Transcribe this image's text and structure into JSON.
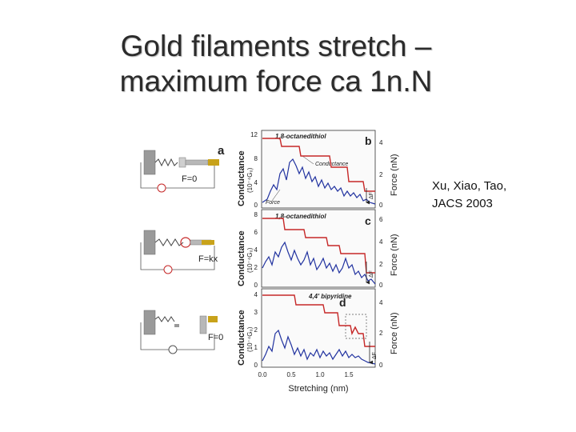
{
  "slide": {
    "title_line1": "Gold filaments stretch –",
    "title_line2": "maximum force ca 1n.N",
    "citation_line1": "Xu, Xiao, Tao,",
    "citation_line2": "JACS 2003"
  },
  "figure": {
    "panel_a": {
      "letter": "a",
      "states": [
        "F=0",
        "F=kx",
        "F=0"
      ]
    },
    "panels": [
      {
        "letter": "b",
        "molecule": "1,8-octanedithiol",
        "labels": [
          "Conductance",
          "Force"
        ],
        "left_ticks": [
          "12",
          "8",
          "4",
          "0"
        ],
        "right_ticks": [
          "4",
          "2",
          "0"
        ]
      },
      {
        "letter": "c",
        "molecule": "1,8-octanedithiol",
        "left_ticks": [
          "8",
          "6",
          "4",
          "2",
          "0"
        ],
        "right_ticks": [
          "6",
          "4",
          "2",
          "0"
        ]
      },
      {
        "letter": "d",
        "molecule": "4,4' bipyridine",
        "left_ticks": [
          "4",
          "3",
          "2",
          "1",
          "0"
        ],
        "right_ticks": [
          "4",
          "2",
          "0"
        ]
      }
    ],
    "y_left_label": "Conductance",
    "y_left_unit": "(10⁻⁴G₀)",
    "y_right_label": "Force (nN)",
    "delta_f": "ΔF",
    "x_axis": {
      "label": "Stretching (nm)",
      "ticks": [
        "0.0",
        "0.5",
        "1.0",
        "1.5"
      ]
    },
    "colors": {
      "conductance": "#c62828",
      "force": "#2233a0",
      "axis": "#333333"
    }
  }
}
